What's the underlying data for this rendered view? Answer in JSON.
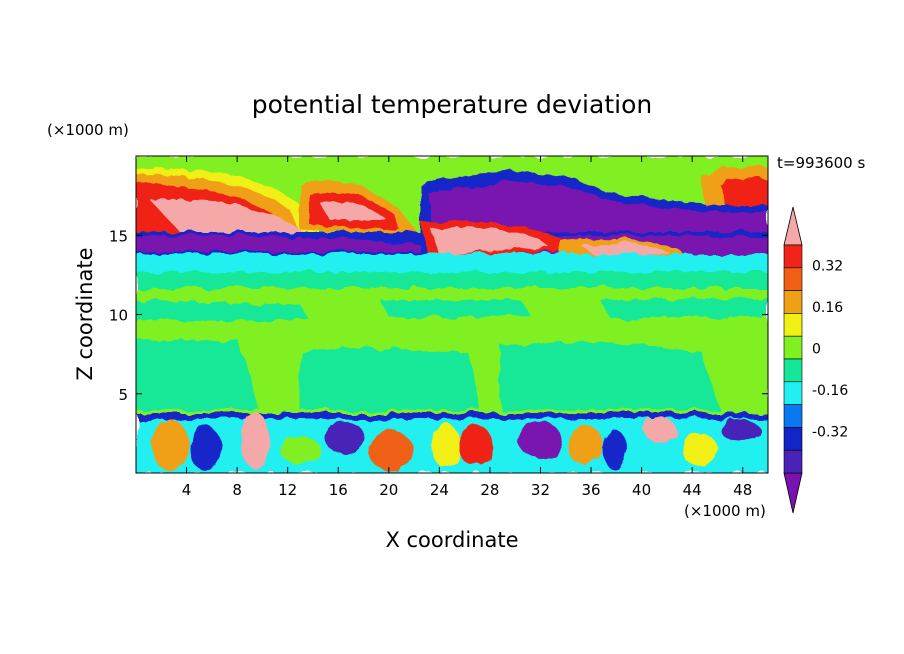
{
  "chart_data": {
    "type": "heatmap",
    "title": "potential temperature deviation",
    "xlabel": "X coordinate",
    "ylabel": "Z coordinate",
    "x_unit": "(×1000 m)",
    "y_unit": "(×1000 m)",
    "time_label": "t=993600 s",
    "xlim": [
      0,
      50
    ],
    "ylim": [
      0,
      20
    ],
    "x_ticks": [
      4,
      8,
      12,
      16,
      20,
      24,
      28,
      32,
      36,
      40,
      44,
      48
    ],
    "y_ticks": [
      5,
      10,
      15
    ],
    "grid": false,
    "legend": "right colorbar",
    "colorbar": {
      "levels": [
        -0.48,
        -0.4,
        -0.32,
        -0.24,
        -0.16,
        -0.08,
        0,
        0.08,
        0.16,
        0.24,
        0.32,
        0.4
      ],
      "labels": [
        "0.32",
        "0.16",
        "0",
        "-0.16",
        "-0.32"
      ],
      "label_values": [
        0.32,
        0.16,
        0,
        -0.16,
        -0.32
      ],
      "colors": [
        "#7a12b0",
        "#4a22b8",
        "#1226c8",
        "#0a78f0",
        "#22f0f0",
        "#14e898",
        "#80f020",
        "#f0f014",
        "#f0a014",
        "#f06014",
        "#f02418",
        "#f5a8a8"
      ]
    },
    "features": [
      {
        "x": [
          0,
          50
        ],
        "z": [
          0,
          3.5
        ],
        "value": "mixed",
        "note": "strong positive/negative cells near surface"
      },
      {
        "x": [
          0,
          50
        ],
        "z": [
          3.5,
          13.5
        ],
        "value": 0.04
      },
      {
        "x": [
          0,
          50
        ],
        "z": [
          13.5,
          16
        ],
        "value": -0.36
      },
      {
        "x": [
          0,
          20
        ],
        "z": [
          16,
          18
        ],
        "value": 0.4
      },
      {
        "x": [
          23,
          40
        ],
        "z": [
          15.5,
          19
        ],
        "value": -0.44
      },
      {
        "x": [
          0,
          50
        ],
        "z": [
          18,
          20
        ],
        "value": 0.02
      }
    ]
  }
}
